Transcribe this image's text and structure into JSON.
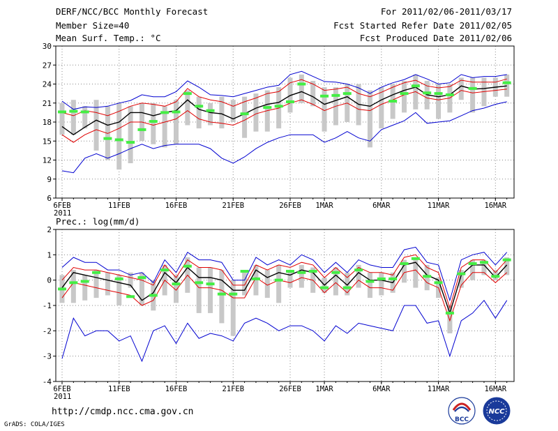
{
  "header": {
    "title": "DERF/NCC/BCC Monthly Forecast",
    "member_size": "Member Size=40",
    "variable": "Mean Surf. Temp.: °C",
    "forecast_period": "For 2011/02/06-2011/03/17",
    "start_refer_date": "Fcst Started Refer Date 2011/02/05",
    "produced_date": "Fcst Produced Date 2011/02/06"
  },
  "footer": {
    "url": "http://cmdp.ncc.cma.gov.cn",
    "software": "GrADS: COLA/IGES",
    "logo_left": "BCC",
    "logo_right": "NCC"
  },
  "colors": {
    "mean": "#000000",
    "spread": "#e00000",
    "extreme": "#0000d0",
    "box": "#c8c8c8",
    "marker": "#44ee44"
  },
  "chart_data": [
    {
      "type": "line",
      "title": "Mean Surf. Temp.: °C",
      "xlabel": "",
      "ylabel": "°C",
      "ylim": [
        6,
        30
      ],
      "yticks": [
        6,
        9,
        12,
        15,
        18,
        21,
        24,
        27,
        30
      ],
      "grid": true,
      "x_tick_labels": [
        {
          "day": 0,
          "label": "6FEB",
          "sub": "2011"
        },
        {
          "day": 5,
          "label": "11FEB"
        },
        {
          "day": 10,
          "label": "16FEB"
        },
        {
          "day": 15,
          "label": "21FEB"
        },
        {
          "day": 20,
          "label": "26FEB"
        },
        {
          "day": 23,
          "label": "1MAR"
        },
        {
          "day": 28,
          "label": "6MAR"
        },
        {
          "day": 33,
          "label": "11MAR"
        },
        {
          "day": 38,
          "label": "16MAR"
        }
      ],
      "days": [
        0,
        1,
        2,
        3,
        4,
        5,
        6,
        7,
        8,
        9,
        10,
        11,
        12,
        13,
        14,
        15,
        16,
        17,
        18,
        19,
        20,
        21,
        22,
        23,
        24,
        25,
        26,
        27,
        28,
        29,
        30,
        31,
        32,
        33,
        34,
        35,
        36,
        37,
        38,
        39
      ],
      "series": [
        {
          "name": "max",
          "role": "extreme",
          "values": [
            21.3,
            20.0,
            20.4,
            20.3,
            20.5,
            21.0,
            21.4,
            22.3,
            22.0,
            22.0,
            22.8,
            24.5,
            23.5,
            22.3,
            22.2,
            22.0,
            22.5,
            23.0,
            23.5,
            23.8,
            25.5,
            26.0,
            25.2,
            24.4,
            24.3,
            24.0,
            23.4,
            22.5,
            23.5,
            24.2,
            24.7,
            25.5,
            24.8,
            24.0,
            24.2,
            25.5,
            25.0,
            25.2,
            25.2,
            25.5
          ]
        },
        {
          "name": "upper",
          "role": "spread",
          "values": [
            19.5,
            19.0,
            19.8,
            19.5,
            19.0,
            19.7,
            20.5,
            21.0,
            20.8,
            20.5,
            21.2,
            23.3,
            22.0,
            21.5,
            21.2,
            20.5,
            21.2,
            21.8,
            22.5,
            22.8,
            24.2,
            24.7,
            24.0,
            23.0,
            23.2,
            23.5,
            22.5,
            22.0,
            22.7,
            23.5,
            24.2,
            24.6,
            23.7,
            23.4,
            23.6,
            24.6,
            24.3,
            24.3,
            24.3,
            24.8
          ]
        },
        {
          "name": "mean",
          "role": "mean",
          "values": [
            17.3,
            16.0,
            17.2,
            18.3,
            17.5,
            18.0,
            19.5,
            19.5,
            19.0,
            19.5,
            19.8,
            21.5,
            20.0,
            19.5,
            19.3,
            18.5,
            19.3,
            20.2,
            20.8,
            21.1,
            22.2,
            22.8,
            22.0,
            20.8,
            21.4,
            22.0,
            20.8,
            20.5,
            21.5,
            22.3,
            23.0,
            23.5,
            22.3,
            22.0,
            22.3,
            23.7,
            23.2,
            23.3,
            23.5,
            23.7
          ]
        },
        {
          "name": "lower",
          "role": "spread",
          "values": [
            16.0,
            14.8,
            16.0,
            16.8,
            16.2,
            17.0,
            18.0,
            18.0,
            17.5,
            18.0,
            18.5,
            19.8,
            18.5,
            18.0,
            17.8,
            17.5,
            18.3,
            19.3,
            19.8,
            20.2,
            21.0,
            21.5,
            20.8,
            19.8,
            20.5,
            21.0,
            20.0,
            19.8,
            20.8,
            21.5,
            22.3,
            22.8,
            21.8,
            21.5,
            21.8,
            23.0,
            22.6,
            22.8,
            23.0,
            23.2
          ]
        },
        {
          "name": "min",
          "role": "extreme",
          "values": [
            10.3,
            10.0,
            12.3,
            13.0,
            12.3,
            13.0,
            13.8,
            14.5,
            13.8,
            14.3,
            14.5,
            14.5,
            14.5,
            13.8,
            12.3,
            11.5,
            12.5,
            13.8,
            14.8,
            15.5,
            16.0,
            16.0,
            16.0,
            14.8,
            15.5,
            16.5,
            15.5,
            15.0,
            16.8,
            17.5,
            18.2,
            19.5,
            17.8,
            18.0,
            18.2,
            19.0,
            19.8,
            20.2,
            20.8,
            21.2
          ]
        }
      ],
      "boxes": [
        {
          "low": 16.0,
          "high": 21.0
        },
        {
          "low": 16.0,
          "high": 21.5
        },
        {
          "low": 17.0,
          "high": 20.5
        },
        {
          "low": 13.5,
          "high": 21.5
        },
        {
          "low": 12.0,
          "high": 20.5
        },
        {
          "low": 10.5,
          "high": 21.0
        },
        {
          "low": 11.5,
          "high": 20.5
        },
        {
          "low": 15.0,
          "high": 21.0
        },
        {
          "low": 14.5,
          "high": 21.0
        },
        {
          "low": 14.0,
          "high": 20.5
        },
        {
          "low": 14.5,
          "high": 21.5
        },
        {
          "low": 17.5,
          "high": 23.0
        },
        {
          "low": 17.0,
          "high": 22.0
        },
        {
          "low": 17.5,
          "high": 21.0
        },
        {
          "low": 17.0,
          "high": 22.0
        },
        {
          "low": 18.0,
          "high": 21.5
        },
        {
          "low": 15.5,
          "high": 22.0
        },
        {
          "low": 16.5,
          "high": 22.5
        },
        {
          "low": 16.5,
          "high": 23.0
        },
        {
          "low": 17.0,
          "high": 23.5
        },
        {
          "low": 19.5,
          "high": 25.0
        },
        {
          "low": 21.0,
          "high": 25.5
        },
        {
          "low": 20.5,
          "high": 24.5
        },
        {
          "low": 16.5,
          "high": 23.5
        },
        {
          "low": 17.5,
          "high": 23.5
        },
        {
          "low": 18.0,
          "high": 24.0
        },
        {
          "low": 17.5,
          "high": 24.0
        },
        {
          "low": 14.0,
          "high": 23.0
        },
        {
          "low": 17.0,
          "high": 23.5
        },
        {
          "low": 18.5,
          "high": 24.0
        },
        {
          "low": 19.5,
          "high": 24.5
        },
        {
          "low": 20.0,
          "high": 25.5
        },
        {
          "low": 20.0,
          "high": 24.5
        },
        {
          "low": 18.5,
          "high": 24.0
        },
        {
          "low": 19.5,
          "high": 24.0
        },
        {
          "low": 21.5,
          "high": 25.0
        },
        {
          "low": 19.5,
          "high": 25.0
        },
        {
          "low": 20.5,
          "high": 25.0
        },
        {
          "low": 22.0,
          "high": 25.0
        },
        {
          "low": 22.0,
          "high": 25.5
        }
      ],
      "markers": [
        19.6,
        19.7,
        19.6,
        null,
        15.4,
        15.2,
        14.8,
        16.8,
        18.1,
        19.5,
        19.6,
        22.5,
        20.5,
        19.8,
        null,
        null,
        19.3,
        null,
        20.3,
        20.5,
        21.2,
        24.0,
        null,
        22.1,
        22.2,
        22.5,
        null,
        null,
        null,
        21.3,
        22.5,
        23.7,
        22.6,
        22.5,
        22.3,
        null,
        23.3,
        null,
        null,
        24.2
      ]
    },
    {
      "type": "line",
      "title": "Prec.: log(mm/d)",
      "xlabel": "",
      "ylabel": "log(mm/d)",
      "ylim": [
        -4,
        2
      ],
      "yticks": [
        -4,
        -3,
        -2,
        -1,
        0,
        1,
        2
      ],
      "grid": true,
      "x_tick_labels": [
        {
          "day": 0,
          "label": "6FEB",
          "sub": "2011"
        },
        {
          "day": 5,
          "label": "11FEB"
        },
        {
          "day": 10,
          "label": "16FEB"
        },
        {
          "day": 15,
          "label": "21FEB"
        },
        {
          "day": 20,
          "label": "26FEB"
        },
        {
          "day": 23,
          "label": "1MAR"
        },
        {
          "day": 28,
          "label": "6MAR"
        },
        {
          "day": 33,
          "label": "11MAR"
        },
        {
          "day": 38,
          "label": "16MAR"
        }
      ],
      "days": [
        0,
        1,
        2,
        3,
        4,
        5,
        6,
        7,
        8,
        9,
        10,
        11,
        12,
        13,
        14,
        15,
        16,
        17,
        18,
        19,
        20,
        21,
        22,
        23,
        24,
        25,
        26,
        27,
        28,
        29,
        30,
        31,
        32,
        33,
        34,
        35,
        36,
        37,
        38,
        39
      ],
      "series": [
        {
          "name": "max",
          "role": "extreme",
          "values": [
            0.5,
            0.9,
            0.7,
            0.7,
            0.4,
            0.4,
            0.2,
            0.3,
            -0.1,
            0.8,
            0.3,
            1.1,
            0.8,
            0.8,
            0.7,
            0.0,
            0.0,
            0.9,
            0.6,
            0.8,
            0.6,
            1.0,
            0.8,
            0.3,
            0.7,
            0.3,
            0.8,
            0.6,
            0.5,
            0.5,
            1.2,
            1.3,
            0.7,
            0.6,
            -0.8,
            0.8,
            1.0,
            1.1,
            0.6,
            1.1
          ]
        },
        {
          "name": "upper",
          "role": "spread",
          "values": [
            0.0,
            0.5,
            0.4,
            0.4,
            0.3,
            0.2,
            0.1,
            0.0,
            -0.2,
            0.6,
            0.1,
            0.8,
            0.5,
            0.5,
            0.4,
            -0.2,
            -0.2,
            0.6,
            0.4,
            0.6,
            0.5,
            0.7,
            0.6,
            0.1,
            0.5,
            0.1,
            0.5,
            0.3,
            0.3,
            0.2,
            0.9,
            1.0,
            0.5,
            0.3,
            -1.1,
            0.5,
            0.8,
            0.8,
            0.3,
            0.8
          ]
        },
        {
          "name": "mean",
          "role": "mean",
          "values": [
            -0.3,
            0.3,
            0.2,
            0.1,
            0.0,
            -0.1,
            -0.2,
            -0.8,
            -0.5,
            0.3,
            -0.1,
            0.5,
            0.1,
            0.1,
            0.0,
            -0.4,
            -0.4,
            0.4,
            0.1,
            0.3,
            0.2,
            0.4,
            0.3,
            -0.2,
            0.2,
            -0.2,
            0.3,
            0.0,
            0.0,
            -0.1,
            0.6,
            0.7,
            0.2,
            0.0,
            -1.3,
            0.2,
            0.6,
            0.6,
            0.1,
            0.6
          ]
        },
        {
          "name": "lower",
          "role": "spread",
          "values": [
            -0.7,
            -0.1,
            -0.2,
            -0.3,
            -0.4,
            -0.5,
            -0.6,
            -1.0,
            -0.8,
            0.0,
            -0.4,
            0.2,
            -0.3,
            -0.3,
            -0.4,
            -0.7,
            -0.7,
            0.1,
            -0.2,
            0.0,
            -0.1,
            0.1,
            0.0,
            -0.5,
            -0.1,
            -0.5,
            0.0,
            -0.3,
            -0.3,
            -0.4,
            0.3,
            0.4,
            -0.1,
            -0.3,
            -1.6,
            -0.2,
            0.3,
            0.3,
            -0.1,
            0.3
          ]
        },
        {
          "name": "min",
          "role": "extreme",
          "values": [
            -3.1,
            -1.5,
            -2.2,
            -2.0,
            -2.0,
            -2.4,
            -2.2,
            -3.2,
            -2.0,
            -1.8,
            -2.5,
            -1.7,
            -2.3,
            -2.1,
            -2.2,
            -2.4,
            -1.7,
            -1.5,
            -1.7,
            -2.0,
            -1.8,
            -1.8,
            -2.0,
            -2.4,
            -1.8,
            -2.1,
            -1.7,
            -1.8,
            -1.9,
            -2.0,
            -1.0,
            -1.0,
            -1.7,
            -1.6,
            -3.0,
            -1.6,
            -1.3,
            -0.8,
            -1.5,
            -0.8
          ]
        }
      ],
      "boxes": [
        {
          "low": -0.9,
          "high": 0.2
        },
        {
          "low": -0.9,
          "high": 0.4
        },
        {
          "low": -0.8,
          "high": 0.2
        },
        {
          "low": -0.7,
          "high": 0.4
        },
        {
          "low": -0.6,
          "high": 0.3
        },
        {
          "low": -1.0,
          "high": 0.2
        },
        {
          "low": -0.3,
          "high": 0.3
        },
        {
          "low": -1.0,
          "high": 0.3
        },
        {
          "low": -1.2,
          "high": 0.0
        },
        {
          "low": -0.6,
          "high": 0.6
        },
        {
          "low": -0.9,
          "high": 0.2
        },
        {
          "low": -0.5,
          "high": 0.9
        },
        {
          "low": -1.3,
          "high": 0.5
        },
        {
          "low": -1.3,
          "high": 0.5
        },
        {
          "low": -1.7,
          "high": 0.4
        },
        {
          "low": -2.2,
          "high": 0.0
        },
        {
          "low": -0.6,
          "high": 0.4
        },
        {
          "low": -0.6,
          "high": 0.6
        },
        {
          "low": -0.7,
          "high": 0.4
        },
        {
          "low": -0.9,
          "high": 0.6
        },
        {
          "low": -0.3,
          "high": 0.4
        },
        {
          "low": -0.3,
          "high": 0.6
        },
        {
          "low": -0.5,
          "high": 0.5
        },
        {
          "low": -0.5,
          "high": 0.1
        },
        {
          "low": -0.6,
          "high": 0.5
        },
        {
          "low": -0.6,
          "high": 0.3
        },
        {
          "low": -0.3,
          "high": 0.6
        },
        {
          "low": -0.7,
          "high": 0.3
        },
        {
          "low": -0.6,
          "high": 0.3
        },
        {
          "low": -0.5,
          "high": 0.3
        },
        {
          "low": -0.1,
          "high": 0.8
        },
        {
          "low": -0.3,
          "high": 0.9
        },
        {
          "low": -0.4,
          "high": 0.6
        },
        {
          "low": -0.7,
          "high": 0.1
        },
        {
          "low": -2.1,
          "high": -1.0
        },
        {
          "low": -0.3,
          "high": 0.4
        },
        {
          "low": 0.0,
          "high": 0.8
        },
        {
          "low": 0.2,
          "high": 0.8
        },
        {
          "low": 0.0,
          "high": 0.4
        },
        {
          "low": 0.2,
          "high": 0.9
        }
      ],
      "markers": [
        -0.35,
        -0.1,
        -0.05,
        0.3,
        null,
        0.05,
        -0.65,
        0.1,
        -0.6,
        0.4,
        -0.15,
        0.55,
        -0.1,
        -0.15,
        -0.55,
        -0.55,
        0.35,
        0.05,
        null,
        0.0,
        0.35,
        0.3,
        0.35,
        -0.3,
        0.3,
        -0.3,
        0.4,
        -0.05,
        0.05,
        0.05,
        0.65,
        0.85,
        0.15,
        -0.1,
        -1.3,
        0.25,
        0.65,
        0.7,
        0.15,
        0.8
      ]
    }
  ]
}
